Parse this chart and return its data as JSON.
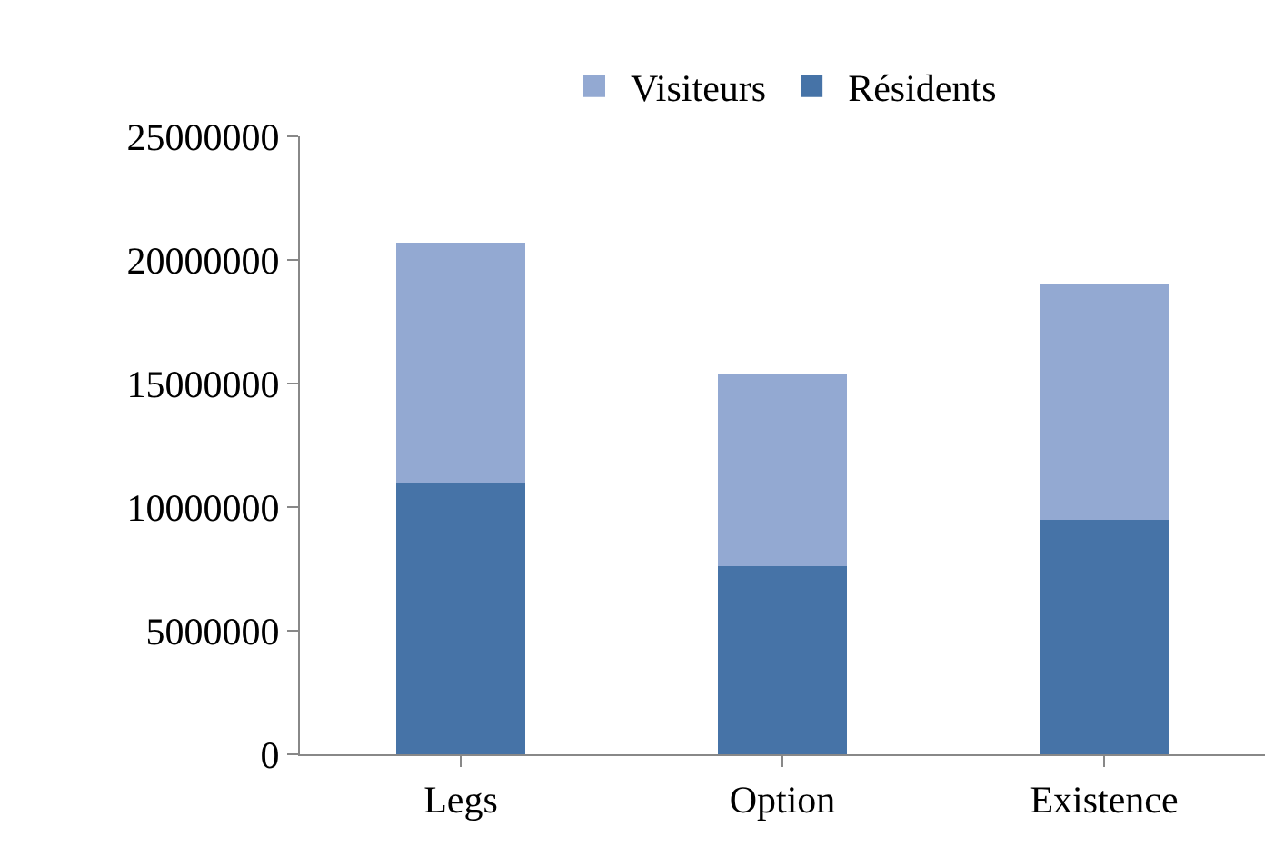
{
  "chart_data": {
    "type": "bar",
    "stacked": true,
    "categories": [
      "Legs",
      "Option",
      "Existence"
    ],
    "series": [
      {
        "name": "Résidents",
        "color": "#4673a7",
        "values": [
          11000000,
          7600000,
          9500000
        ]
      },
      {
        "name": "Visiteurs",
        "color": "#93a9d2",
        "values": [
          9700000,
          7800000,
          9500000
        ]
      }
    ],
    "ylim": [
      0,
      25000000
    ],
    "yticks": [
      0,
      5000000,
      10000000,
      15000000,
      20000000,
      25000000
    ],
    "grid": false,
    "legend": "top"
  }
}
